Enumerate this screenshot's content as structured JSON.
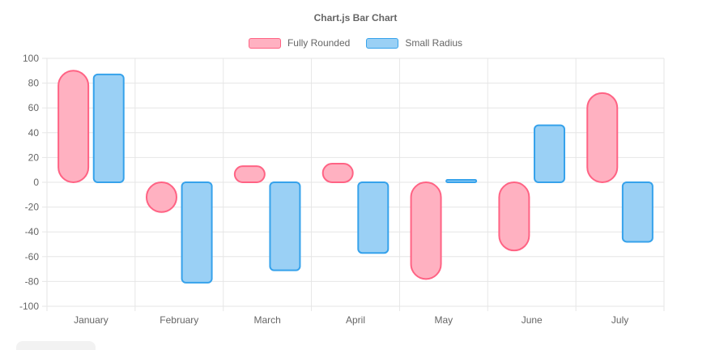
{
  "title": "Chart.js Bar Chart",
  "chart_data": {
    "type": "bar",
    "title": "Chart.js Bar Chart",
    "categories": [
      "January",
      "February",
      "March",
      "April",
      "May",
      "June",
      "July"
    ],
    "series": [
      {
        "name": "Fully Rounded",
        "rounding": "full",
        "fill": "#ffb1c1",
        "border": "#ff6384",
        "values": [
          90,
          -24,
          13,
          15,
          -78,
          -55,
          72
        ]
      },
      {
        "name": "Small Radius",
        "rounding": "small",
        "fill": "#9ad0f5",
        "border": "#36a2eb",
        "values": [
          87,
          -81,
          -71,
          -57,
          2,
          46,
          -48
        ]
      }
    ],
    "ylim": [
      -100,
      100
    ],
    "ytick_step": 20,
    "grid": true,
    "legend_position": "top",
    "xlabel": "",
    "ylabel": ""
  },
  "colors": {
    "grid": "#e6e6e6",
    "axis_text": "#666666",
    "background": "#ffffff",
    "partial_button": "#f2f2f2"
  }
}
